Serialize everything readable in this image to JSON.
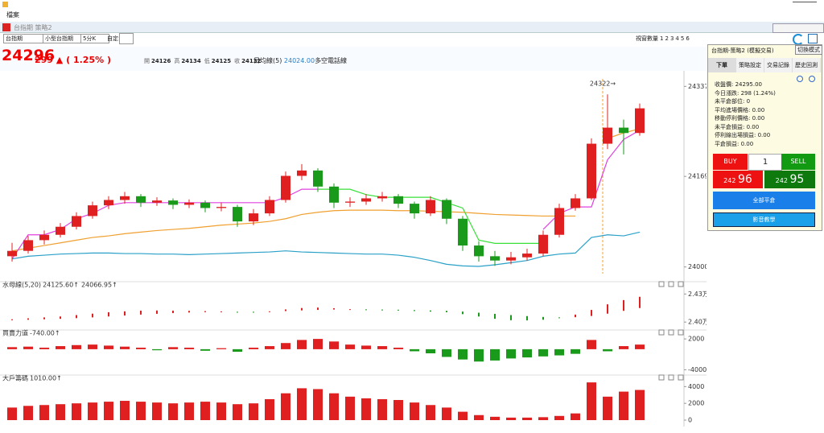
{
  "window": {
    "menu": "檔案",
    "title": "台指期 策略2"
  },
  "toolbar": {
    "product": "台指期",
    "contract": "小型台指期",
    "interval": "5分K",
    "custom_label": "自定:",
    "view_label": "視窗數量",
    "view_options": [
      "1",
      "2",
      "3",
      "4",
      "5",
      "6"
    ]
  },
  "quote": {
    "price": "24296",
    "change": "299 ▲",
    "percent": "( 1.25% )",
    "ohlc": [
      {
        "label": "開",
        "value": "24126"
      },
      {
        "label": "高",
        "value": "24134"
      },
      {
        "label": "低",
        "value": "24125"
      },
      {
        "label": "收",
        "value": "24132"
      }
    ],
    "ma_label": "日均線(5)",
    "ma_value": "24024.00",
    "ma_extra": "多空電話線"
  },
  "chart_data": [
    {
      "type": "candlestick",
      "annotation": "24322→",
      "up_color": "#e02020",
      "down_color": "#1a9a1a",
      "ylim": [
        23980,
        24360
      ],
      "yticks": [
        24000,
        24169,
        24337
      ],
      "candles": [
        [
          24020,
          24045,
          24010,
          24030
        ],
        [
          24030,
          24058,
          24025,
          24050
        ],
        [
          24050,
          24068,
          24042,
          24060
        ],
        [
          24060,
          24082,
          24055,
          24075
        ],
        [
          24075,
          24102,
          24070,
          24095
        ],
        [
          24095,
          24122,
          24090,
          24115
        ],
        [
          24115,
          24132,
          24108,
          24125
        ],
        [
          24125,
          24140,
          24118,
          24132
        ],
        [
          24132,
          24136,
          24112,
          24120
        ],
        [
          24120,
          24130,
          24114,
          24124
        ],
        [
          24124,
          24128,
          24108,
          24116
        ],
        [
          24116,
          24126,
          24110,
          24120
        ],
        [
          24120,
          24124,
          24102,
          24110
        ],
        [
          24110,
          24120,
          24104,
          24112
        ],
        [
          24112,
          24116,
          24075,
          24085
        ],
        [
          24085,
          24108,
          24078,
          24100
        ],
        [
          24100,
          24132,
          24095,
          24125
        ],
        [
          24125,
          24178,
          24120,
          24170
        ],
        [
          24170,
          24192,
          24162,
          24180
        ],
        [
          24180,
          24184,
          24140,
          24150
        ],
        [
          24150,
          24156,
          24110,
          24120
        ],
        [
          24120,
          24130,
          24112,
          24122
        ],
        [
          24122,
          24136,
          24116,
          24128
        ],
        [
          24128,
          24140,
          24122,
          24132
        ],
        [
          24132,
          24136,
          24110,
          24118
        ],
        [
          24118,
          24122,
          24090,
          24100
        ],
        [
          24100,
          24132,
          24095,
          24125
        ],
        [
          24125,
          24128,
          24080,
          24090
        ],
        [
          24090,
          24095,
          24030,
          24040
        ],
        [
          24040,
          24048,
          24010,
          24020
        ],
        [
          24020,
          24030,
          24002,
          24012
        ],
        [
          24012,
          24028,
          24005,
          24018
        ],
        [
          24018,
          24034,
          24012,
          24025
        ],
        [
          24025,
          24068,
          24020,
          24060
        ],
        [
          24060,
          24118,
          24055,
          24110
        ],
        [
          24110,
          24136,
          24105,
          24128
        ],
        [
          24128,
          24240,
          24125,
          24230
        ],
        [
          24230,
          24322,
          24220,
          24260
        ],
        [
          24260,
          24275,
          24210,
          24250
        ],
        [
          24250,
          24305,
          24245,
          24296
        ]
      ],
      "lines": [
        {
          "color": "#2aa0c8",
          "values": [
            24015,
            24020,
            24022,
            24024,
            24025,
            24026,
            24026,
            24025,
            24025,
            24024,
            24024,
            24023,
            24024,
            24025,
            24026,
            24027,
            24028,
            24030,
            24028,
            24027,
            24026,
            24025,
            24024,
            24024,
            24022,
            24018,
            24012,
            24005,
            24002,
            24001,
            24004,
            24008,
            24012,
            24020,
            24024,
            24026,
            24055,
            24060,
            24058,
            24065
          ]
        },
        {
          "color": "#f0a030",
          "values": [
            24030,
            24035,
            24040,
            24045,
            24050,
            24055,
            24058,
            24062,
            24065,
            24068,
            24070,
            24072,
            24075,
            24078,
            24080,
            24082,
            24085,
            24090,
            24098,
            24102,
            24105,
            24106,
            24106,
            24106,
            24105,
            24105,
            24104,
            24103,
            24102,
            24100,
            24098,
            24097,
            24096,
            24095,
            24095,
            24095,
            null,
            24240,
            24250,
            24258
          ]
        },
        {
          "color": "#38e038",
          "values": [
            null,
            null,
            null,
            null,
            null,
            null,
            null,
            null,
            null,
            null,
            null,
            null,
            null,
            null,
            null,
            null,
            null,
            null,
            null,
            24145,
            24145,
            24145,
            24135,
            24130,
            24130,
            24130,
            24130,
            24120,
            24110,
            24050,
            24044,
            24044,
            24044,
            24044,
            null,
            null,
            null,
            null,
            null,
            null
          ]
        },
        {
          "color": "#e040e0",
          "values": [
            24015,
            24060,
            24060,
            24070,
            24090,
            24100,
            24115,
            24120,
            24120,
            24120,
            24120,
            24120,
            24120,
            24120,
            24120,
            24120,
            24120,
            24130,
            24145,
            24145,
            null,
            null,
            null,
            null,
            null,
            null,
            null,
            null,
            null,
            null,
            null,
            null,
            null,
            24070,
            24100,
            24112,
            24112,
            24200,
            24238,
            24255
          ]
        }
      ]
    },
    {
      "type": "range_bar",
      "title": "水母線(5,20)",
      "up_color": "#e02020",
      "down_color": "#1a9a1a",
      "ylim": [
        23950,
        24380
      ],
      "yticks": [
        {
          "value": 24000,
          "label": "2.40万"
        },
        {
          "value": 24300,
          "label": "2.43万"
        }
      ],
      "series": [
        {
          "name": "24125.60↑",
          "color": "#f0a030",
          "values": [
            24030,
            24040,
            24050,
            24060,
            24075,
            24090,
            24105,
            24115,
            24122,
            24124,
            24122,
            24120,
            24117,
            24114,
            24108,
            24105,
            24115,
            24135,
            24150,
            24155,
            24148,
            24138,
            24128,
            24125,
            24125,
            24118,
            24112,
            24105,
            24085,
            24060,
            24035,
            24020,
            24018,
            24025,
            24045,
            24080,
            24130,
            24190,
            24235,
            24270
          ]
        },
        {
          "name": "24066.95↑",
          "color": "#2aa0c8",
          "values": [
            24020,
            24025,
            24030,
            24035,
            24042,
            24050,
            24060,
            24070,
            24080,
            24088,
            24096,
            24102,
            24106,
            24110,
            24110,
            24110,
            24112,
            24118,
            24125,
            24130,
            24134,
            24136,
            24136,
            24134,
            24132,
            24128,
            24124,
            24120,
            24112,
            24100,
            24088,
            24075,
            24064,
            24055,
            24050,
            24052,
            24065,
            24090,
            24120,
            24150
          ]
        }
      ]
    },
    {
      "type": "bar",
      "title": "買賣力道",
      "legend": "-740.00↑",
      "legend_color": "#f0a030",
      "up_color": "#e02020",
      "down_color": "#1a9a1a",
      "ylim": [
        -4400,
        2800
      ],
      "yticks": [
        -4000,
        2000
      ],
      "values": [
        400,
        500,
        300,
        600,
        800,
        900,
        700,
        500,
        300,
        -200,
        400,
        300,
        -300,
        200,
        -500,
        300,
        600,
        1200,
        1800,
        2000,
        1500,
        900,
        700,
        600,
        300,
        -400,
        -800,
        -1500,
        -2000,
        -2400,
        -2200,
        -1800,
        -1600,
        -1400,
        -1200,
        -900,
        1800,
        -400,
        600,
        900
      ]
    },
    {
      "type": "bar",
      "title": "大戶籌碼",
      "legend": "1010.00↑",
      "legend_color": "#f0a030",
      "up_color": "#e02020",
      "down_color": "#1a9a1a",
      "ylim": [
        0,
        4800
      ],
      "yticks": [
        0,
        2000,
        4000
      ],
      "values": [
        1500,
        1700,
        1800,
        1900,
        2000,
        2100,
        2200,
        2300,
        2200,
        2100,
        2000,
        2100,
        2200,
        2100,
        1900,
        2000,
        2500,
        3200,
        3800,
        3700,
        3200,
        2800,
        2600,
        2500,
        2400,
        2100,
        1800,
        1500,
        1000,
        600,
        400,
        300,
        300,
        350,
        500,
        800,
        4500,
        2800,
        3400,
        3600
      ]
    }
  ],
  "panel": {
    "title": "台指期-策略2 (模擬交易)",
    "mode_button": "切換模式",
    "tabs": [
      "下單",
      "策略設定",
      "交易記錄",
      "歷史回測"
    ],
    "info": [
      "收盤價: 24295.00",
      "今日漲跌: 298 (1.24%)",
      "未平倉部位: 0",
      "平均進場價格: 0.00",
      "移動停利價格: 0.00",
      "未平倉損益: 0.00",
      "停利線出場損益: 0.00",
      "平倉損益: 0.00"
    ],
    "buy": "BUY",
    "quantity": "1",
    "sell": "SELL",
    "buy_price": {
      "head": "242",
      "tail": "96"
    },
    "sell_price": {
      "head": "242",
      "tail": "95"
    },
    "close_all": "全部平倉",
    "tutorial": "影音教學"
  }
}
